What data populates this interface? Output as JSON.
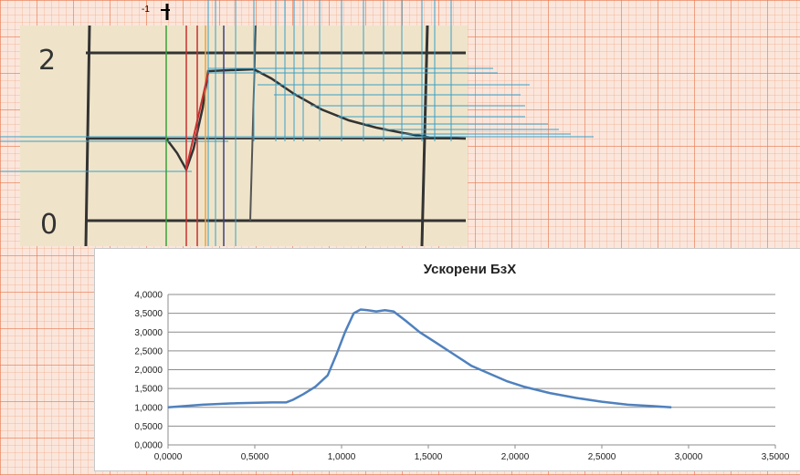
{
  "scan": {
    "label_top": "2",
    "label_bottom": "0",
    "marker_label": "-1"
  },
  "chart_data": {
    "type": "line",
    "title": "Ускорени БзХ",
    "xlabel": "",
    "ylabel": "",
    "xlim": [
      0,
      3.5
    ],
    "ylim": [
      0,
      4
    ],
    "x_ticks": [
      "0,0000",
      "0,5000",
      "1,0000",
      "1,5000",
      "2,0000",
      "2,5000",
      "3,0000",
      "3,5000"
    ],
    "y_ticks": [
      "0,0000",
      "0,5000",
      "1,0000",
      "1,5000",
      "2,0000",
      "2,5000",
      "3,0000",
      "3,5000",
      "4,0000"
    ],
    "grid": "horizontal",
    "series_color": "#4f81bd",
    "series": [
      {
        "x": [
          0,
          0.2,
          0.4,
          0.6,
          0.68,
          0.72,
          0.78,
          0.85,
          0.92,
          0.97,
          1.02,
          1.07,
          1.11,
          1.15,
          1.2,
          1.25,
          1.3,
          1.37,
          1.45,
          1.55,
          1.65,
          1.75,
          1.85,
          1.95,
          2.05,
          2.2,
          2.35,
          2.5,
          2.65,
          2.8,
          2.9
        ],
        "y": [
          1.0,
          1.07,
          1.11,
          1.13,
          1.13,
          1.2,
          1.35,
          1.55,
          1.85,
          2.4,
          3.0,
          3.5,
          3.6,
          3.58,
          3.55,
          3.58,
          3.55,
          3.3,
          3.0,
          2.7,
          2.4,
          2.1,
          1.9,
          1.7,
          1.55,
          1.38,
          1.25,
          1.15,
          1.07,
          1.03,
          1.0
        ]
      }
    ]
  },
  "overlay": {
    "colors": {
      "blue_lines": "#3aa0c8",
      "green_line": "#3aa03a",
      "red_lines": "#c83030",
      "orange_line": "#f0a040",
      "dark_line": "#404080",
      "ink": "#222222"
    }
  }
}
